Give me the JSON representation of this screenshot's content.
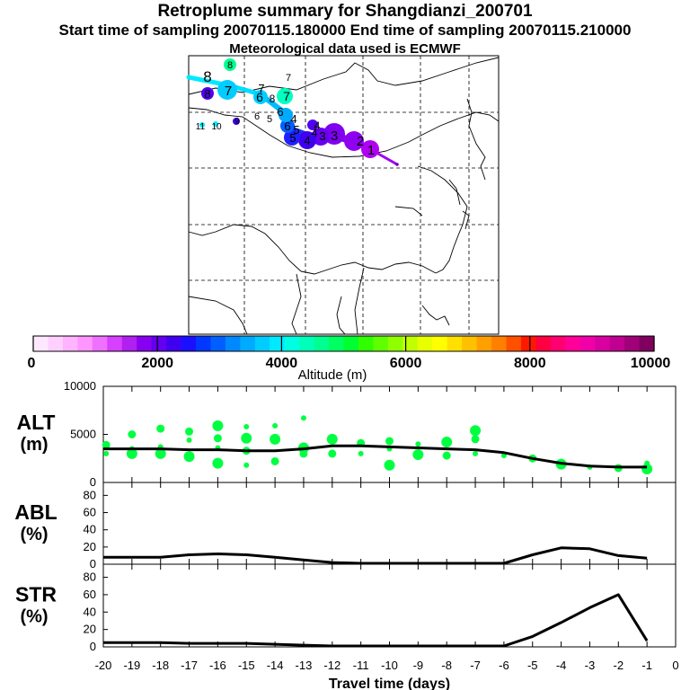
{
  "title": "Retroplume summary for Shangdianzi_200701",
  "subtitle": "Start time of sampling 20070115.180000      End time of sampling 20070115.210000",
  "subtitle2": "Meteorological data used is ECMWF",
  "colorbar": {
    "label": "Altitude (m)",
    "min": 0,
    "max": 10000,
    "tick_labels": [
      "0",
      "2000",
      "4000",
      "6000",
      "8000",
      "10000"
    ],
    "colors": [
      "#ffe8ff",
      "#ffd0ff",
      "#ffb4ff",
      "#ff96ff",
      "#f070ff",
      "#d840ff",
      "#b020f0",
      "#8800f0",
      "#6400f0",
      "#4000f0",
      "#1a10ff",
      "#0038ff",
      "#0060ff",
      "#0088ff",
      "#00aaff",
      "#00ccff",
      "#00eaff",
      "#00ffe0",
      "#00ffb8",
      "#00ff90",
      "#00ff60",
      "#00ff30",
      "#30ff00",
      "#60ff00",
      "#90ff00",
      "#c0ff00",
      "#e8ff00",
      "#ffff00",
      "#ffe000",
      "#ffc000",
      "#ffa000",
      "#ff8000",
      "#ff5000",
      "#ff1800",
      "#ff0040",
      "#ff0070",
      "#ff0098",
      "#f000a8",
      "#d800a0",
      "#c00090",
      "#a00078",
      "#800060"
    ]
  },
  "map": {
    "labels": [
      {
        "text": "1",
        "lon": 0.6,
        "lat": 0.3,
        "color": "#c000f0",
        "alt": 1500
      },
      {
        "text": "2",
        "lon": 0.53,
        "lat": 0.27,
        "color": "#a000f0",
        "alt": 1700
      },
      {
        "text": "3",
        "lon": 0.47,
        "lat": 0.25,
        "color": "#8000f0",
        "alt": 2000
      },
      {
        "text": "4",
        "lon": 0.39,
        "lat": 0.26,
        "color": "#4000f0",
        "alt": 2600
      },
      {
        "text": "5",
        "lon": 0.33,
        "lat": 0.26,
        "color": "#1030ff",
        "alt": 3000
      },
      {
        "text": "6",
        "lon": 0.31,
        "lat": 0.22,
        "color": "#0080ff",
        "alt": 3500
      },
      {
        "text": "7",
        "lon": 0.31,
        "lat": 0.12,
        "color": "#00ffc0",
        "alt": 4200
      },
      {
        "text": "8",
        "lon": 0.13,
        "lat": 0.03,
        "color": "#00ff90",
        "alt": 4500
      }
    ]
  },
  "chart_data": [
    {
      "type": "line",
      "panel": "ALT",
      "title": "ALT",
      "ylabel": "(m)",
      "x": [
        -20,
        -19,
        -18,
        -17,
        -16,
        -15,
        -14,
        -13,
        -12,
        -11,
        -10,
        -9,
        -8,
        -7,
        -6,
        -5,
        -4,
        -3,
        -2,
        -1
      ],
      "values": [
        3500,
        3500,
        3500,
        3400,
        3400,
        3300,
        3300,
        3500,
        3800,
        3800,
        3700,
        3600,
        3500,
        3400,
        3100,
        2500,
        2000,
        1700,
        1600,
        1600
      ],
      "ylim": [
        0,
        10000
      ],
      "ytick_labels": [
        "0",
        "5000",
        "10000"
      ],
      "scatter_color": "#00ff40",
      "scatter_points": [
        [
          -19.9,
          3000
        ],
        [
          -19.9,
          3900
        ],
        [
          -19.0,
          3000
        ],
        [
          -19.0,
          3500
        ],
        [
          -19.0,
          5000
        ],
        [
          -18.0,
          3000
        ],
        [
          -18.0,
          3700
        ],
        [
          -18.0,
          5600
        ],
        [
          -17.0,
          2700
        ],
        [
          -17.0,
          4400
        ],
        [
          -17.0,
          5300
        ],
        [
          -16.0,
          2000
        ],
        [
          -16.0,
          3600
        ],
        [
          -16.0,
          4600
        ],
        [
          -16.0,
          5900
        ],
        [
          -15.0,
          1800
        ],
        [
          -15.0,
          3300
        ],
        [
          -15.0,
          4600
        ],
        [
          -15.0,
          5800
        ],
        [
          -14.0,
          2200
        ],
        [
          -14.0,
          4500
        ],
        [
          -14.0,
          5900
        ],
        [
          -13.0,
          3000
        ],
        [
          -13.0,
          3600
        ],
        [
          -13.0,
          6700
        ],
        [
          -12.0,
          3000
        ],
        [
          -12.0,
          4500
        ],
        [
          -11.0,
          3000
        ],
        [
          -11.0,
          4100
        ],
        [
          -10.0,
          1800
        ],
        [
          -10.0,
          3500
        ],
        [
          -10.0,
          4300
        ],
        [
          -9.0,
          2900
        ],
        [
          -9.0,
          4000
        ],
        [
          -8.0,
          2800
        ],
        [
          -8.0,
          4200
        ],
        [
          -7.0,
          3000
        ],
        [
          -7.0,
          4500
        ],
        [
          -7.0,
          5400
        ],
        [
          -6.0,
          2800
        ],
        [
          -5.0,
          2500
        ],
        [
          -4.0,
          1900
        ],
        [
          -3.0,
          1600
        ],
        [
          -2.0,
          1500
        ],
        [
          -1.0,
          1400
        ],
        [
          -1.0,
          2000
        ]
      ]
    },
    {
      "type": "line",
      "panel": "ABL",
      "title": "ABL",
      "ylabel": "(%)",
      "x": [
        -20,
        -19,
        -18,
        -17,
        -16,
        -15,
        -14,
        -13,
        -12,
        -11,
        -10,
        -9,
        -8,
        -7,
        -6,
        -5,
        -4,
        -3,
        -2,
        -1
      ],
      "values": [
        8,
        8,
        8,
        11,
        12,
        11,
        8,
        5,
        2,
        1,
        1,
        1,
        1,
        1,
        1,
        11,
        19,
        18,
        10,
        7
      ],
      "ylim": [
        0,
        95
      ],
      "ytick_labels": [
        "0",
        "20",
        "40",
        "60",
        "80"
      ]
    },
    {
      "type": "line",
      "panel": "STR",
      "title": "STR",
      "ylabel": "(%)",
      "x": [
        -20,
        -19,
        -18,
        -17,
        -16,
        -15,
        -14,
        -13,
        -12,
        -11,
        -10,
        -9,
        -8,
        -7,
        -6,
        -5,
        -4,
        -3,
        -2,
        -1
      ],
      "values": [
        5,
        5,
        5,
        4,
        4,
        4,
        3,
        2,
        1,
        1,
        1,
        1,
        1,
        1,
        1,
        12,
        28,
        45,
        60,
        7
      ],
      "ylim": [
        0,
        95
      ],
      "ytick_labels": [
        "0",
        "20",
        "40",
        "60",
        "80"
      ],
      "xlabel": "Travel time (days)",
      "xtick_labels": [
        "-20",
        "-19",
        "-18",
        "-17",
        "-16",
        "-15",
        "-14",
        "-13",
        "-12",
        "-11",
        "-10",
        "-9",
        "-8",
        "-7",
        "-6",
        "-5",
        "-4",
        "-3",
        "-2",
        "-1",
        "0"
      ]
    }
  ]
}
